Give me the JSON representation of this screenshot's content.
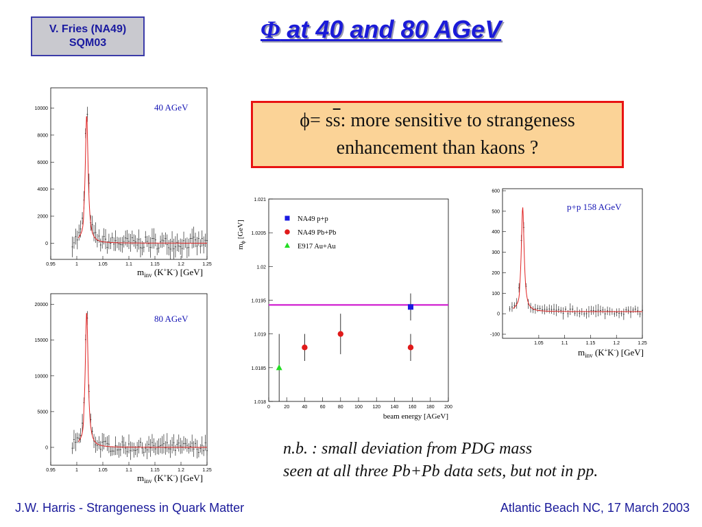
{
  "header": {
    "tag_line1": "V. Fries (NA49)",
    "tag_line2": "SQM03",
    "title_symbol": "Φ",
    "title_text": " at 40 and 80 AGeV"
  },
  "callout": {
    "line1_a": "ϕ= s",
    "line1_bar": "s",
    "line1_b": ": more sensitive to strangeness",
    "line2": "enhancement than kaons ?"
  },
  "note": {
    "line1": "n.b. : small deviation from PDG mass",
    "line2": "seen at all three Pb+Pb data sets, but not in pp."
  },
  "footer": {
    "left": "J.W. Harris - Strangeness in Quark Matter",
    "right": "Atlantic Beach NC, 17 March 2003"
  },
  "chart_data": [
    {
      "type": "line",
      "panel_label": "40 AGeV",
      "xlabel": "m_inv (K⁺K⁻) [GeV]",
      "xlim": [
        0.95,
        1.25
      ],
      "ylim": [
        -1200,
        11500
      ],
      "x_ticks": [
        "0.95",
        "1",
        "1.05",
        "1.1",
        "1.15",
        "1.2",
        "1.25"
      ],
      "y_ticks": [
        "0",
        "2000",
        "4000",
        "6000",
        "8000",
        "10000"
      ],
      "peak_x": 1.019,
      "peak_y": 9500,
      "data_peak_y": 10500,
      "background_y": 0,
      "points": [
        [
          0.99,
          -50
        ],
        [
          1.0,
          -400
        ],
        [
          1.01,
          600
        ],
        [
          1.015,
          3500
        ],
        [
          1.018,
          9000
        ],
        [
          1.019,
          10500
        ],
        [
          1.021,
          7000
        ],
        [
          1.025,
          1200
        ],
        [
          1.03,
          200
        ],
        [
          1.05,
          -100
        ],
        [
          1.1,
          -100
        ],
        [
          1.15,
          150
        ],
        [
          1.2,
          200
        ],
        [
          1.25,
          100
        ]
      ]
    },
    {
      "type": "line",
      "panel_label": "80 AGeV",
      "xlabel": "m_inv (K⁺K⁻) [GeV]",
      "xlim": [
        0.95,
        1.25
      ],
      "ylim": [
        -2500,
        21500
      ],
      "x_ticks": [
        "0.95",
        "1",
        "1.05",
        "1.1",
        "1.15",
        "1.2",
        "1.25"
      ],
      "y_ticks": [
        "0",
        "5000",
        "10000",
        "15000",
        "20000"
      ],
      "peak_x": 1.019,
      "peak_y": 19000,
      "data_peak_y": 20000,
      "background_y": 0,
      "points": [
        [
          0.99,
          -100
        ],
        [
          1.0,
          -1000
        ],
        [
          1.01,
          1500
        ],
        [
          1.015,
          7000
        ],
        [
          1.018,
          18000
        ],
        [
          1.019,
          20000
        ],
        [
          1.021,
          13000
        ],
        [
          1.025,
          2500
        ],
        [
          1.03,
          300
        ],
        [
          1.05,
          -200
        ],
        [
          1.1,
          -200
        ],
        [
          1.15,
          300
        ],
        [
          1.2,
          400
        ],
        [
          1.25,
          200
        ]
      ]
    },
    {
      "type": "scatter",
      "ylabel": "m_ϕ [GeV]",
      "xlabel": "beam energy [AGeV]",
      "xlim": [
        0,
        200
      ],
      "ylim": [
        1.018,
        1.021
      ],
      "x_ticks": [
        "0",
        "20",
        "40",
        "60",
        "80",
        "100",
        "120",
        "140",
        "160",
        "180",
        "200"
      ],
      "y_ticks": [
        "1.018",
        "1.0185",
        "1.019",
        "1.0195",
        "1.02",
        "1.0205",
        "1.021"
      ],
      "reference_line_y": 1.01943,
      "reference_line_color": "#d01ed0",
      "series": [
        {
          "name": "NA49 p+p",
          "color": "#1a1ae0",
          "marker": "square",
          "points": [
            {
              "x": 158,
              "y": 1.0194,
              "err": 0.0002
            }
          ]
        },
        {
          "name": "NA49 Pb+Pb",
          "color": "#e01a1a",
          "marker": "circle",
          "points": [
            {
              "x": 40,
              "y": 1.0188,
              "err": 0.0002
            },
            {
              "x": 80,
              "y": 1.019,
              "err": 0.0003
            },
            {
              "x": 158,
              "y": 1.0188,
              "err": 0.0002
            }
          ]
        },
        {
          "name": "E917 Au+Au",
          "color": "#22dd22",
          "marker": "triangle",
          "points": [
            {
              "x": 11.6,
              "y": 1.0185,
              "err": 0.0005
            }
          ]
        }
      ]
    },
    {
      "type": "line",
      "panel_label": "p+p  158 AGeV",
      "xlabel": "m_inv (K⁺K⁻) [GeV]",
      "xlim": [
        0.98,
        1.25
      ],
      "ylim": [
        -120,
        610
      ],
      "x_ticks": [
        "1.05",
        "1.1",
        "1.15",
        "1.2",
        "1.25"
      ],
      "y_ticks": [
        "-100",
        "0",
        "100",
        "200",
        "300",
        "400",
        "500",
        "600"
      ],
      "peak_x": 1.019,
      "peak_y": 510,
      "data_peak_y": 530,
      "background_y": 10,
      "points": [
        [
          0.99,
          80
        ],
        [
          1.0,
          -10
        ],
        [
          1.01,
          40
        ],
        [
          1.015,
          250
        ],
        [
          1.018,
          480
        ],
        [
          1.019,
          530
        ],
        [
          1.021,
          350
        ],
        [
          1.025,
          80
        ],
        [
          1.03,
          20
        ],
        [
          1.05,
          10
        ],
        [
          1.1,
          5
        ],
        [
          1.15,
          0
        ],
        [
          1.2,
          10
        ],
        [
          1.25,
          5
        ]
      ]
    }
  ]
}
